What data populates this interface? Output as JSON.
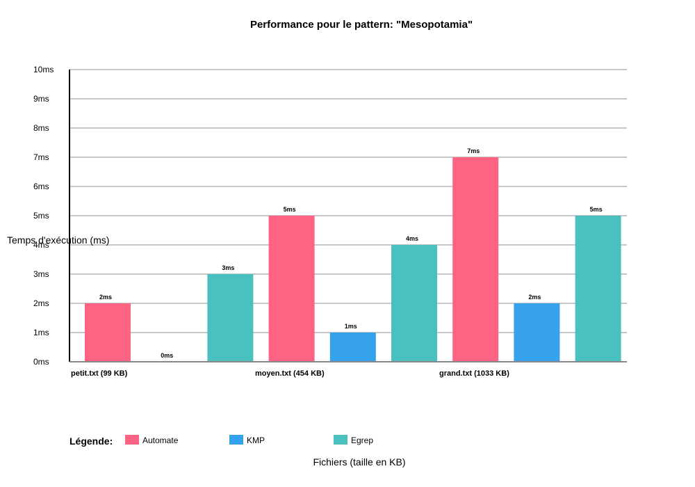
{
  "chart_data": {
    "type": "bar",
    "title": "Performance pour le pattern: \"Mesopotamia\"",
    "xlabel": "Fichiers (taille en KB)",
    "ylabel": "Temps d'exécution (ms)",
    "ylim": [
      0,
      10
    ],
    "yticks": [
      "0ms",
      "1ms",
      "2ms",
      "3ms",
      "4ms",
      "5ms",
      "6ms",
      "7ms",
      "8ms",
      "9ms",
      "10ms"
    ],
    "grid": true,
    "unit": "ms",
    "categories": [
      "petit.txt (99 KB)",
      "moyen.txt (454 KB)",
      "grand.txt (1033 KB)"
    ],
    "series": [
      {
        "name": "Automate",
        "color": "#ff6384",
        "values": [
          2,
          5,
          7
        ]
      },
      {
        "name": "KMP",
        "color": "#36a2eb",
        "values": [
          0,
          1,
          2
        ]
      },
      {
        "name": "Egrep",
        "color": "#4bc0c0",
        "values": [
          3,
          4,
          5
        ]
      }
    ],
    "legend_title": "Légende:",
    "legend_position": "bottom"
  }
}
